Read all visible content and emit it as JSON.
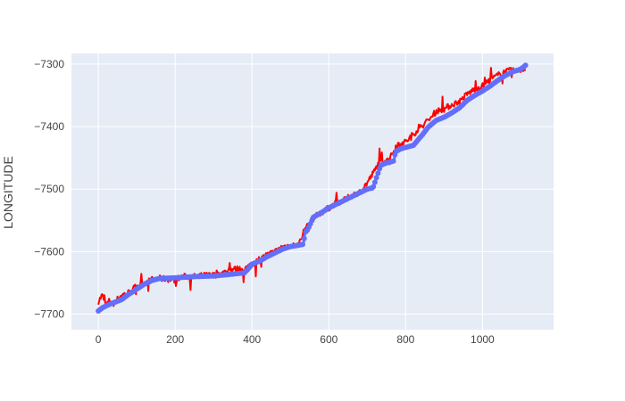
{
  "chart_data": {
    "type": "line",
    "title": "",
    "xlabel": "",
    "ylabel": "LONGITUDE",
    "xlim": [
      -70,
      1185
    ],
    "ylim": [
      -7725,
      -7283
    ],
    "xticks": [
      0,
      200,
      400,
      600,
      800,
      1000
    ],
    "xtick_labels": [
      "0",
      "200",
      "400",
      "600",
      "800",
      "1000"
    ],
    "yticks": [
      -7700,
      -7600,
      -7500,
      -7400,
      -7300
    ],
    "ytick_labels": [
      "−7700",
      "−7600",
      "−7500",
      "−7400",
      "−7300"
    ],
    "grid": true,
    "background_color": "#E5ECF6",
    "series": [
      {
        "color": "#FF0000",
        "style": "noisy-line",
        "x": [
          0,
          10,
          20,
          30,
          40,
          60,
          80,
          100,
          120,
          140,
          160,
          180,
          200,
          220,
          250,
          280,
          300,
          320,
          350,
          380,
          400,
          420,
          440,
          460,
          480,
          500,
          520,
          540,
          545,
          560,
          580,
          600,
          620,
          640,
          660,
          680,
          700,
          720,
          730,
          740,
          760,
          775,
          790,
          800,
          820,
          840,
          860,
          880,
          900,
          920,
          940,
          960,
          980,
          1000,
          1020,
          1040,
          1060,
          1080,
          1100,
          1112
        ],
        "y": [
          -7680,
          -7670,
          -7685,
          -7678,
          -7682,
          -7670,
          -7665,
          -7655,
          -7650,
          -7645,
          -7643,
          -7644,
          -7645,
          -7640,
          -7640,
          -7638,
          -7638,
          -7635,
          -7628,
          -7628,
          -7620,
          -7612,
          -7605,
          -7600,
          -7592,
          -7590,
          -7590,
          -7560,
          -7560,
          -7545,
          -7538,
          -7530,
          -7522,
          -7518,
          -7510,
          -7505,
          -7490,
          -7470,
          -7458,
          -7455,
          -7450,
          -7430,
          -7425,
          -7425,
          -7412,
          -7400,
          -7390,
          -7375,
          -7372,
          -7365,
          -7360,
          -7348,
          -7340,
          -7335,
          -7325,
          -7318,
          -7312,
          -7310,
          -7310,
          -7305
        ]
      },
      {
        "color": "#636EFA",
        "style": "line+markers",
        "x": [
          0,
          10,
          30,
          60,
          80,
          100,
          120,
          140,
          160,
          200,
          250,
          300,
          350,
          380,
          390,
          400,
          420,
          440,
          460,
          480,
          500,
          520,
          535,
          537,
          545,
          560,
          580,
          600,
          620,
          640,
          660,
          680,
          700,
          715,
          725,
          735,
          750,
          770,
          773,
          790,
          820,
          845,
          860,
          880,
          900,
          920,
          940,
          960,
          980,
          1000,
          1020,
          1040,
          1060,
          1080,
          1100,
          1112
        ],
        "y": [
          -7695,
          -7690,
          -7684,
          -7677,
          -7668,
          -7660,
          -7652,
          -7646,
          -7643,
          -7642,
          -7640,
          -7639,
          -7636,
          -7634,
          -7628,
          -7620,
          -7615,
          -7608,
          -7602,
          -7596,
          -7592,
          -7590,
          -7588,
          -7570,
          -7565,
          -7545,
          -7538,
          -7530,
          -7524,
          -7518,
          -7512,
          -7506,
          -7500,
          -7498,
          -7480,
          -7462,
          -7458,
          -7455,
          -7440,
          -7435,
          -7430,
          -7412,
          -7400,
          -7390,
          -7385,
          -7378,
          -7370,
          -7358,
          -7350,
          -7343,
          -7335,
          -7326,
          -7318,
          -7312,
          -7308,
          -7302
        ]
      }
    ]
  }
}
